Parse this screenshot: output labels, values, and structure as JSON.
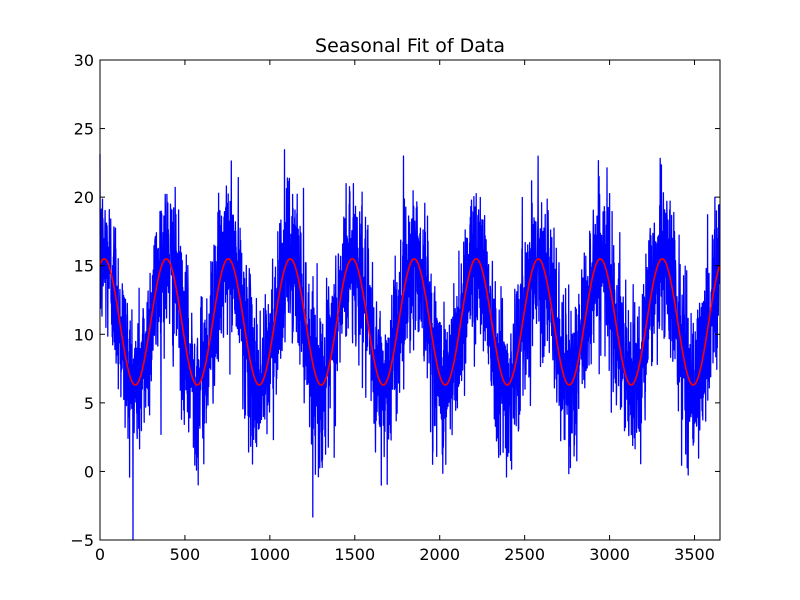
{
  "chart_data": {
    "type": "line",
    "title": "Seasonal Fit of Data",
    "xlabel": "",
    "ylabel": "",
    "xlim": [
      0,
      3650
    ],
    "ylim": [
      -5,
      30
    ],
    "x_ticks": [
      0,
      500,
      1000,
      1500,
      2000,
      2500,
      3000,
      3500
    ],
    "y_ticks": [
      -5,
      0,
      5,
      10,
      15,
      20,
      25,
      30
    ],
    "x_tick_labels": [
      "0",
      "500",
      "1000",
      "1500",
      "2000",
      "2500",
      "3000",
      "3500"
    ],
    "y_tick_labels": [
      "−5",
      "0",
      "5",
      "10",
      "15",
      "20",
      "25",
      "30"
    ],
    "grid": false,
    "legend": "none",
    "series": [
      {
        "role": "data",
        "color": "#0000ff",
        "x_start": 0,
        "x_end": 3649,
        "period": 365,
        "mean": 10.9,
        "amplitude": 4.6,
        "peak_day": 25,
        "noise_sd": 2.9
      },
      {
        "role": "seasonal-fit",
        "color": "#ff0000",
        "x_start": 0,
        "x_end": 3649,
        "period": 365,
        "mean": 10.9,
        "amplitude": 4.6,
        "peak_day": 25
      }
    ]
  }
}
